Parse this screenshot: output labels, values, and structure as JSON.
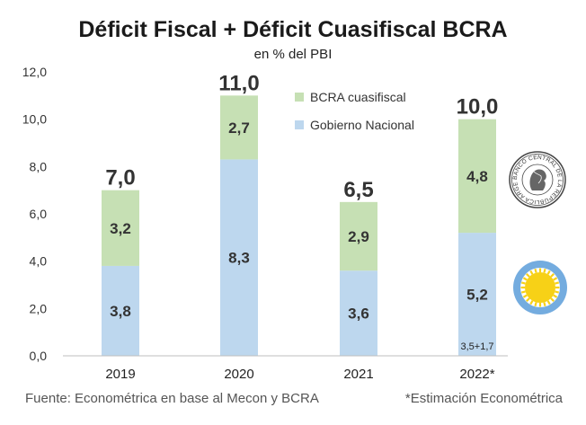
{
  "chart_data": {
    "type": "bar",
    "stacked": true,
    "title": "Déficit Fiscal + Déficit Cuasifiscal BCRA",
    "subtitle": "en % del PBI",
    "categories": [
      "2019",
      "2020",
      "2021",
      "2022*"
    ],
    "series": [
      {
        "name": "Gobierno Nacional",
        "color": "#bdd7ee",
        "values": [
          3.8,
          8.3,
          3.6,
          5.2
        ],
        "labels": [
          "3,8",
          "8,3",
          "3,6",
          "5,2"
        ]
      },
      {
        "name": "BCRA cuasifiscal",
        "color": "#c6e0b4",
        "values": [
          3.2,
          2.7,
          2.9,
          4.8
        ],
        "labels": [
          "3,2",
          "2,7",
          "2,9",
          "4,8"
        ]
      }
    ],
    "totals": [
      7.0,
      11.0,
      6.5,
      10.0
    ],
    "total_labels": [
      "7,0",
      "11,0",
      "6,5",
      "10,0"
    ],
    "annotation": "3,5+1,7",
    "ylim": [
      0,
      12
    ],
    "yticks": [
      0,
      2,
      4,
      6,
      8,
      10,
      12
    ],
    "ytick_labels": [
      "0,0",
      "2,0",
      "4,0",
      "6,0",
      "8,0",
      "10,0",
      "12,0"
    ],
    "legend": [
      "BCRA cuasifiscal",
      "Gobierno Nacional"
    ],
    "legend_position": "top-center",
    "xlabel": "",
    "ylabel": ""
  },
  "footer": {
    "source": "Fuente: Econométrica en base al Mecon y BCRA",
    "note": "*Estimación Econométrica"
  },
  "logos": {
    "bcra_seal": "BANCO CENTRAL DE LA REPÚBLICA ARGENTINA"
  },
  "colors": {
    "axis": "#bfbfbf",
    "sun": "#f7d117",
    "sun_ring": "#74acdf"
  }
}
